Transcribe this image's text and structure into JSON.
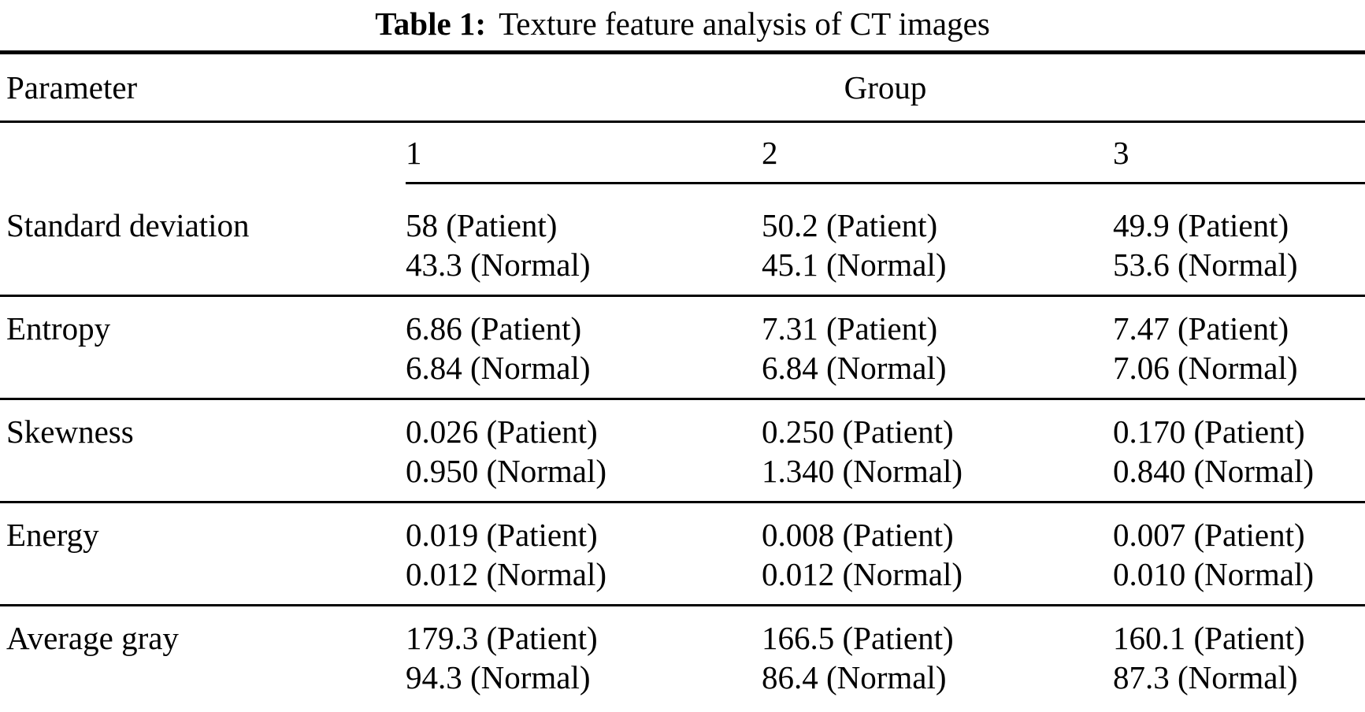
{
  "table": {
    "caption_label": "Table 1:",
    "caption_text": "Texture feature analysis of CT images",
    "header": {
      "parameter": "Parameter",
      "group": "Group"
    },
    "group_numbers": [
      "1",
      "2",
      "3"
    ],
    "rows": [
      {
        "param": "Standard deviation",
        "cells": [
          {
            "patient": "58 (Patient)",
            "normal": "43.3 (Normal)"
          },
          {
            "patient": "50.2 (Patient)",
            "normal": "45.1 (Normal)"
          },
          {
            "patient": "49.9 (Patient)",
            "normal": "53.6 (Normal)"
          }
        ]
      },
      {
        "param": "Entropy",
        "cells": [
          {
            "patient": "6.86 (Patient)",
            "normal": "6.84 (Normal)"
          },
          {
            "patient": "7.31 (Patient)",
            "normal": "6.84 (Normal)"
          },
          {
            "patient": "7.47 (Patient)",
            "normal": "7.06 (Normal)"
          }
        ]
      },
      {
        "param": "Skewness",
        "cells": [
          {
            "patient": "0.026 (Patient)",
            "normal": "0.950 (Normal)"
          },
          {
            "patient": "0.250 (Patient)",
            "normal": "1.340 (Normal)"
          },
          {
            "patient": "0.170 (Patient)",
            "normal": "0.840 (Normal)"
          }
        ]
      },
      {
        "param": "Energy",
        "cells": [
          {
            "patient": "0.019 (Patient)",
            "normal": "0.012 (Normal)"
          },
          {
            "patient": "0.008 (Patient)",
            "normal": "0.012 (Normal)"
          },
          {
            "patient": "0.007 (Patient)",
            "normal": "0.010 (Normal)"
          }
        ]
      },
      {
        "param": "Average gray",
        "cells": [
          {
            "patient": "179.3 (Patient)",
            "normal": "94.3 (Normal)"
          },
          {
            "patient": "166.5 (Patient)",
            "normal": "86.4 (Normal)"
          },
          {
            "patient": "160.1 (Patient)",
            "normal": "87.3 (Normal)"
          }
        ]
      }
    ]
  },
  "chart_data": {
    "type": "table",
    "title": "Table 1: Texture feature analysis of CT images",
    "columns": [
      "Parameter",
      "Group 1",
      "Group 2",
      "Group 3"
    ],
    "categories": [
      "Standard deviation",
      "Entropy",
      "Skewness",
      "Energy",
      "Average gray"
    ],
    "series": [
      {
        "name": "Patient",
        "group1": [
          58,
          6.86,
          0.026,
          0.019,
          179.3
        ],
        "group2": [
          50.2,
          7.31,
          0.25,
          0.008,
          166.5
        ],
        "group3": [
          49.9,
          7.47,
          0.17,
          0.007,
          160.1
        ]
      },
      {
        "name": "Normal",
        "group1": [
          43.3,
          6.84,
          0.95,
          0.012,
          94.3
        ],
        "group2": [
          45.1,
          6.84,
          1.34,
          0.012,
          86.4
        ],
        "group3": [
          53.6,
          7.06,
          0.84,
          0.01,
          87.3
        ]
      }
    ]
  }
}
